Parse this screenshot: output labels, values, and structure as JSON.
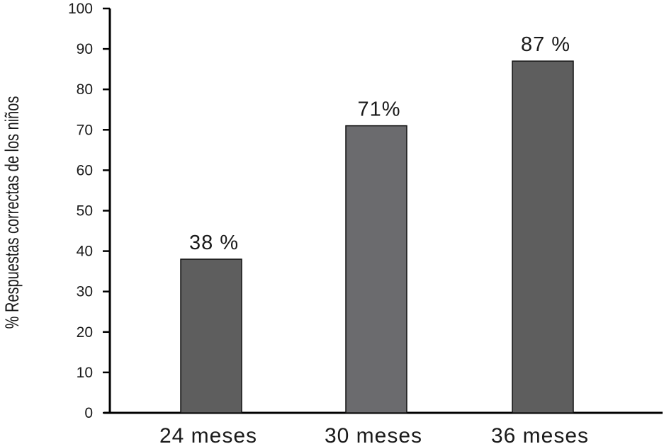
{
  "chart_data": {
    "type": "bar",
    "ylabel": "% Respuestas correctas de los niños",
    "xlabel": "",
    "ylim": [
      0,
      100
    ],
    "yticks": [
      "0",
      "10",
      "20",
      "30",
      "40",
      "50",
      "60",
      "70",
      "80",
      "90",
      "100"
    ],
    "categories": [
      "24 meses",
      "30 meses",
      "36 meses"
    ],
    "values": [
      38,
      71,
      87
    ],
    "data_labels": [
      "38 %",
      "71%",
      "87 %"
    ],
    "bar_colors": [
      "#5e5e5e",
      "#6b6b6e",
      "#5e5e5e"
    ],
    "grid": false,
    "legend": "none"
  }
}
